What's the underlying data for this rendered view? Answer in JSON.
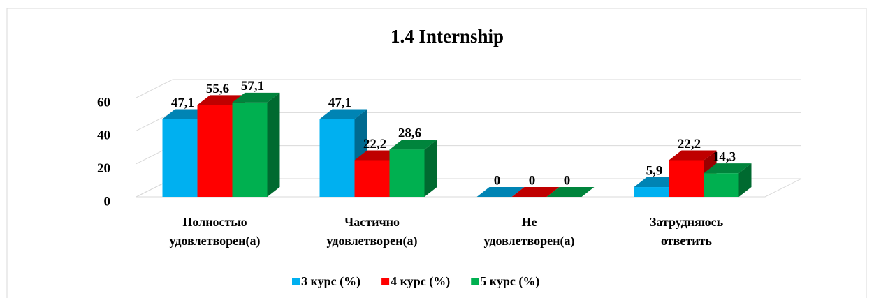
{
  "chart_data": {
    "type": "bar3d",
    "title": "1.4 Internship",
    "categories": [
      [
        "Полностью",
        "удовлетворен(а)"
      ],
      [
        "Частично",
        "удовлетворен(а)"
      ],
      [
        "Не",
        "удовлетворен(а)"
      ],
      [
        "Затрудняюсь",
        "ответить"
      ]
    ],
    "series": [
      {
        "name": "3 курс (%)",
        "color": "#00b0f0",
        "values": [
          47.1,
          47.1,
          0,
          5.9
        ],
        "value_labels": [
          "47,1",
          "47,1",
          "0",
          "5,9"
        ]
      },
      {
        "name": "4 курс (%)",
        "color": "#ff0000",
        "values": [
          55.6,
          22.2,
          0,
          22.2
        ],
        "value_labels": [
          "55,6",
          "22,2",
          "0",
          "22,2"
        ]
      },
      {
        "name": "5 курс (%)",
        "color": "#00b050",
        "values": [
          57.1,
          28.6,
          0,
          14.3
        ],
        "value_labels": [
          "57,1",
          "28,6",
          "0",
          "14,3"
        ]
      }
    ],
    "ylim": [
      0,
      60
    ],
    "yticks": [
      0,
      20,
      40,
      60
    ],
    "grid": true,
    "legend": "bottom"
  }
}
